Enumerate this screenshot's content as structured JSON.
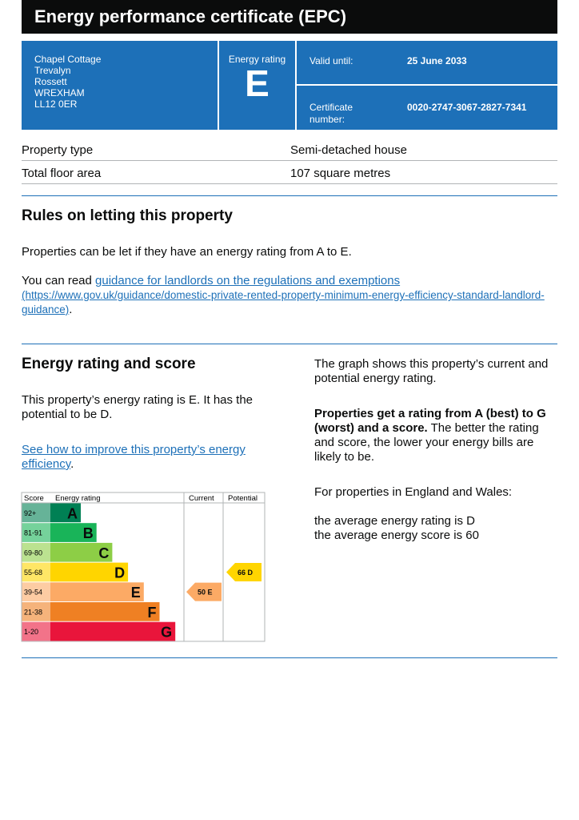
{
  "header": {
    "title": "Energy performance certificate (EPC)"
  },
  "summary": {
    "address": [
      "Chapel Cottage",
      "Trevalyn",
      "Rossett",
      "WREXHAM",
      "LL12 0ER"
    ],
    "rating_label": "Energy rating",
    "rating": "E",
    "valid_label": "Valid until:",
    "valid_value": "25 June 2033",
    "cert_label": "Certificate number:",
    "cert_value": "0020-2747-3067-2827-7341"
  },
  "property": {
    "rows": [
      [
        "Property type",
        "Semi-detached house"
      ],
      [
        "Total floor area",
        "107 square metres"
      ]
    ]
  },
  "letting": {
    "heading": "Rules on letting this property",
    "paragraph": "Properties can be let if they have an energy rating from A to E.",
    "read_prefix": "You can read",
    "link_text": "guidance for landlords on the regulations and exemptions",
    "link_url": "(https://www.gov.uk/guidance/domestic-private-rented-property-minimum-energy-efficiency-standard-landlord-guidance)",
    "read_suffix": "."
  },
  "rating_section": {
    "heading": "Energy rating and score",
    "paragraph": "This property’s energy rating is E. It has the potential to be D.",
    "improve_link": "See how to improve this property’s energy efficiency",
    "improve_suffix": ".",
    "right_p1": "The graph shows this property’s current and potential energy rating.",
    "right_p2_bold": "Properties get a rating from A (best) to G (worst) and a score.",
    "right_p2_rest": "The better the rating and score, the lower your energy bills are likely to be.",
    "right_p3": "For properties in England and Wales:",
    "right_p4": [
      "the average energy rating is D",
      "the average energy score is 60"
    ]
  },
  "chart": {
    "headers": [
      "Score",
      "Energy rating",
      "Current",
      "Potential"
    ],
    "bands": [
      {
        "score": "92+",
        "letter": "A",
        "color": "#008054",
        "light": "#66b398"
      },
      {
        "score": "81-91",
        "letter": "B",
        "color": "#19b459",
        "light": "#75d29b"
      },
      {
        "score": "69-80",
        "letter": "C",
        "color": "#8dce46",
        "light": "#bbe290"
      },
      {
        "score": "55-68",
        "letter": "D",
        "color": "#ffd500",
        "light": "#ffe666"
      },
      {
        "score": "39-54",
        "letter": "E",
        "color": "#fcaa65",
        "light": "#fdcca3"
      },
      {
        "score": "21-38",
        "letter": "F",
        "color": "#ef8023",
        "light": "#f5b37b"
      },
      {
        "score": "1-20",
        "letter": "G",
        "color": "#e9153b",
        "light": "#f27389"
      }
    ],
    "current": {
      "score": 50,
      "band": "E"
    },
    "potential": {
      "score": 66,
      "band": "D"
    }
  }
}
